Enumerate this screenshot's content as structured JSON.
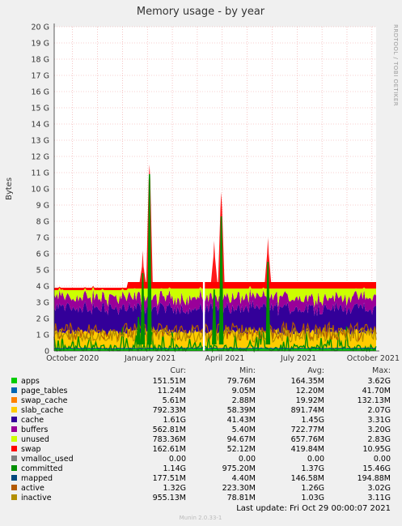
{
  "chart_data": {
    "type": "area",
    "title": "Memory usage - by year",
    "ylabel": "Bytes",
    "watermark": "RRDTOOL / TOBI OETIKER",
    "footer": "Munin 2.0.33-1",
    "ylim": [
      0,
      20
    ],
    "yunit": "G",
    "yticks": [
      "0",
      "1 G",
      "2 G",
      "3 G",
      "4 G",
      "5 G",
      "6 G",
      "7 G",
      "8 G",
      "9 G",
      "10 G",
      "11 G",
      "12 G",
      "13 G",
      "14 G",
      "15 G",
      "16 G",
      "17 G",
      "18 G",
      "19 G",
      "20 G"
    ],
    "xticks": [
      "October 2020",
      "January 2021",
      "April 2021",
      "July 2021",
      "October 2021"
    ],
    "xrange": [
      "2020-09-27",
      "2021-10-29"
    ],
    "grid": true,
    "legend_headers": {
      "cur": "Cur:",
      "min": "Min:",
      "avg": "Avg:",
      "max": "Max:"
    },
    "legend": [
      {
        "name": "apps",
        "color": "#00cc00",
        "cur": "151.51M",
        "min": "79.76M",
        "avg": "164.35M",
        "max": "3.62G"
      },
      {
        "name": "page_tables",
        "color": "#0066b3",
        "cur": "11.24M",
        "min": "9.05M",
        "avg": "12.20M",
        "max": "41.70M"
      },
      {
        "name": "swap_cache",
        "color": "#ff8000",
        "cur": "5.61M",
        "min": "2.88M",
        "avg": "19.92M",
        "max": "132.13M"
      },
      {
        "name": "slab_cache",
        "color": "#ffcc00",
        "cur": "792.33M",
        "min": "58.39M",
        "avg": "891.74M",
        "max": "2.07G"
      },
      {
        "name": "cache",
        "color": "#330099",
        "cur": "1.61G",
        "min": "41.43M",
        "avg": "1.45G",
        "max": "3.31G"
      },
      {
        "name": "buffers",
        "color": "#990099",
        "cur": "562.81M",
        "min": "5.40M",
        "avg": "722.77M",
        "max": "3.20G"
      },
      {
        "name": "unused",
        "color": "#ccff00",
        "cur": "783.36M",
        "min": "94.67M",
        "avg": "657.76M",
        "max": "2.83G"
      },
      {
        "name": "swap",
        "color": "#ff0000",
        "cur": "162.61M",
        "min": "52.12M",
        "avg": "419.84M",
        "max": "10.95G"
      },
      {
        "name": "vmalloc_used",
        "color": "#808080",
        "cur": "0.00",
        "min": "0.00",
        "avg": "0.00",
        "max": "0.00"
      },
      {
        "name": "committed",
        "color": "#008f00",
        "cur": "1.14G",
        "min": "975.20M",
        "avg": "1.37G",
        "max": "15.46G"
      },
      {
        "name": "mapped",
        "color": "#00487d",
        "cur": "177.51M",
        "min": "4.40M",
        "avg": "146.58M",
        "max": "194.88M"
      },
      {
        "name": "active",
        "color": "#b35a00",
        "cur": "1.32G",
        "min": "223.30M",
        "avg": "1.26G",
        "max": "3.02G"
      },
      {
        "name": "inactive",
        "color": "#b38f00",
        "cur": "955.13M",
        "min": "78.81M",
        "avg": "1.03G",
        "max": "3.11G"
      }
    ],
    "stack_order": [
      "apps",
      "page_tables",
      "swap_cache",
      "slab_cache",
      "cache",
      "buffers",
      "unused",
      "swap"
    ],
    "line_series": [
      "committed",
      "mapped",
      "active",
      "inactive"
    ],
    "gaps": [
      [
        0.462,
        0.468
      ]
    ],
    "spikes": [
      {
        "series": "committed",
        "x": 0.275,
        "value": 4.8
      },
      {
        "series": "committed",
        "x": 0.296,
        "value": 10.9
      },
      {
        "series": "committed",
        "x": 0.262,
        "value": 2.1
      },
      {
        "series": "committed",
        "x": 0.519,
        "value": 8.3
      },
      {
        "series": "committed",
        "x": 0.497,
        "value": 3.8
      },
      {
        "series": "committed",
        "x": 0.664,
        "value": 5.5
      },
      {
        "series": "swap",
        "x": 0.497,
        "value": 6.8
      },
      {
        "series": "swap",
        "x": 0.519,
        "value": 9.8
      },
      {
        "series": "swap",
        "x": 0.664,
        "value": 7.0
      },
      {
        "series": "swap",
        "x": 0.275,
        "value": 6.2
      },
      {
        "series": "swap",
        "x": 0.296,
        "value": 11.5
      }
    ],
    "last_update": "Last update:  Fri Oct 29 00:00:07 2021"
  }
}
